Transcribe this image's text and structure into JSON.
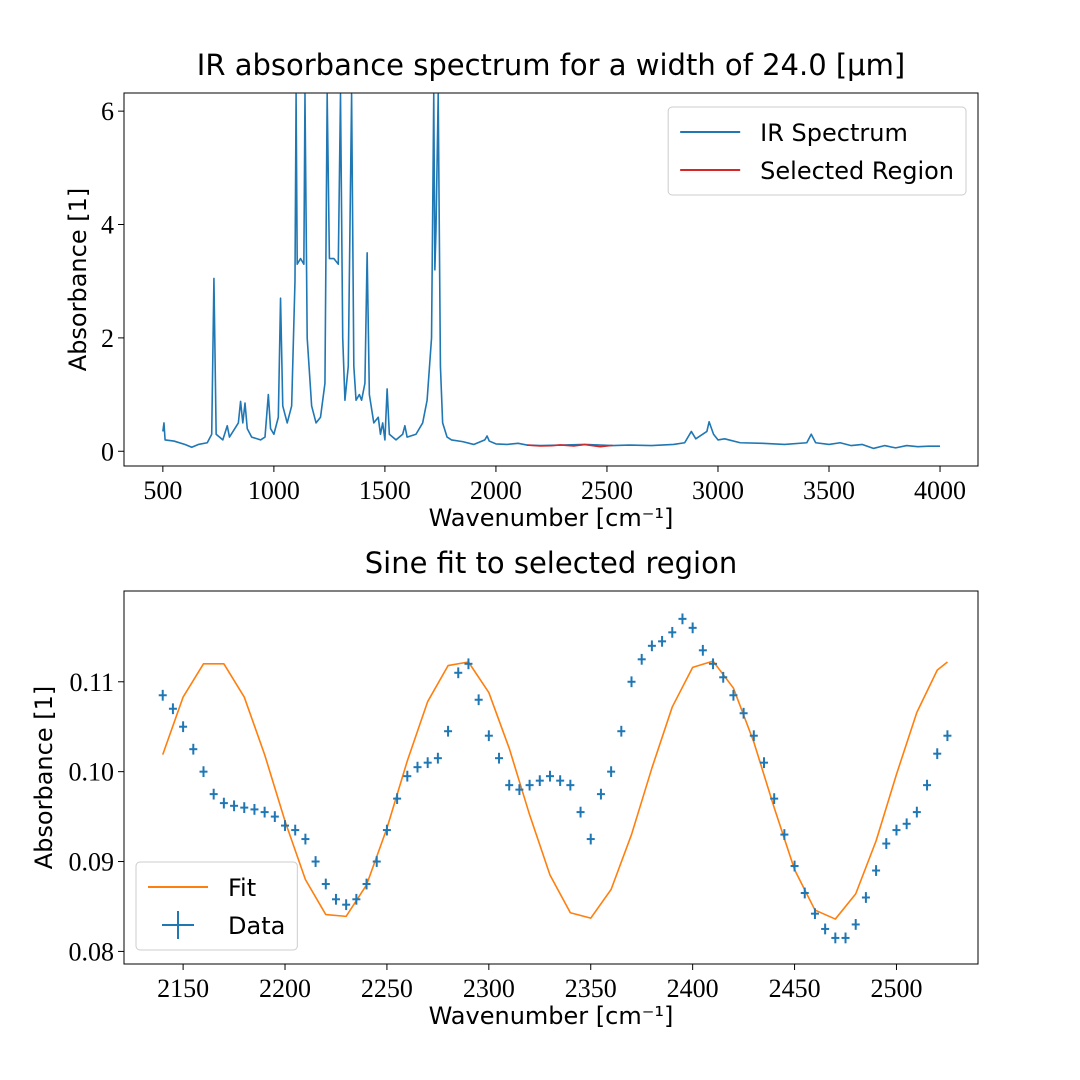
{
  "chart_data": [
    {
      "type": "line",
      "title": "IR absorbance spectrum for a width of 24.0 [μm]",
      "xlabel": "Wavenumber [cm⁻¹]",
      "ylabel": "Absorbance [1]",
      "xlim": [
        325,
        4171
      ],
      "ylim": [
        -0.26,
        6.32
      ],
      "xticks": [
        500,
        1000,
        1500,
        2000,
        2500,
        3000,
        3500,
        4000
      ],
      "yticks": [
        0,
        2,
        4,
        6
      ],
      "legend": "upper right",
      "series": [
        {
          "name": "IR Spectrum",
          "color": "#1f77b4",
          "x": [
            500,
            505,
            510,
            550,
            600,
            630,
            660,
            700,
            720,
            730,
            740,
            770,
            790,
            800,
            840,
            850,
            860,
            870,
            880,
            900,
            940,
            960,
            975,
            985,
            1000,
            1020,
            1030,
            1040,
            1060,
            1080,
            1095,
            1100,
            1105,
            1120,
            1135,
            1140,
            1150,
            1170,
            1190,
            1210,
            1230,
            1240,
            1250,
            1270,
            1290,
            1300,
            1310,
            1320,
            1335,
            1350,
            1360,
            1370,
            1385,
            1395,
            1410,
            1420,
            1430,
            1450,
            1470,
            1480,
            1490,
            1500,
            1510,
            1520,
            1550,
            1580,
            1590,
            1600,
            1640,
            1670,
            1690,
            1710,
            1720,
            1725,
            1730,
            1740,
            1750,
            1760,
            1780,
            1800,
            1850,
            1900,
            1950,
            1960,
            1970,
            2000,
            2050,
            2100,
            2140,
            2200,
            2300,
            2400,
            2525,
            2600,
            2700,
            2800,
            2850,
            2880,
            2900,
            2950,
            2960,
            2980,
            3000,
            3030,
            3100,
            3200,
            3300,
            3400,
            3420,
            3440,
            3500,
            3550,
            3600,
            3650,
            3700,
            3750,
            3800,
            3850,
            3900,
            3950,
            4000
          ],
          "values": [
            0.35,
            0.5,
            0.2,
            0.18,
            0.12,
            0.07,
            0.12,
            0.15,
            0.3,
            3.05,
            0.3,
            0.2,
            0.45,
            0.25,
            0.5,
            0.88,
            0.5,
            0.85,
            0.4,
            0.25,
            0.2,
            0.25,
            1.0,
            0.4,
            0.3,
            0.6,
            2.7,
            0.8,
            0.5,
            0.8,
            3.0,
            6.3,
            3.3,
            3.4,
            3.3,
            6.3,
            2.0,
            0.8,
            0.5,
            0.6,
            1.2,
            6.3,
            3.4,
            3.4,
            3.3,
            6.3,
            2.0,
            0.9,
            1.5,
            6.3,
            1.5,
            0.9,
            1.0,
            0.9,
            1.2,
            3.5,
            1.0,
            0.5,
            0.6,
            0.3,
            0.5,
            0.2,
            1.1,
            0.3,
            0.2,
            0.3,
            0.45,
            0.25,
            0.3,
            0.5,
            0.9,
            2.0,
            6.3,
            3.2,
            3.9,
            6.3,
            1.5,
            0.5,
            0.25,
            0.2,
            0.17,
            0.12,
            0.2,
            0.27,
            0.18,
            0.13,
            0.12,
            0.14,
            0.11,
            0.1,
            0.11,
            0.12,
            0.1,
            0.11,
            0.1,
            0.12,
            0.15,
            0.35,
            0.22,
            0.35,
            0.52,
            0.3,
            0.2,
            0.22,
            0.15,
            0.14,
            0.12,
            0.15,
            0.3,
            0.15,
            0.12,
            0.15,
            0.1,
            0.12,
            0.05,
            0.1,
            0.06,
            0.1,
            0.08,
            0.09,
            0.09
          ]
        },
        {
          "name": "Selected Region",
          "color": "#d62728",
          "x": [
            2140,
            2200,
            2250,
            2290,
            2350,
            2400,
            2470,
            2525
          ],
          "values": [
            0.109,
            0.093,
            0.097,
            0.112,
            0.093,
            0.117,
            0.081,
            0.104
          ]
        }
      ]
    },
    {
      "type": "line",
      "title": "Sine fit to selected region",
      "xlabel": "Wavenumber [cm⁻¹]",
      "ylabel": "Absorbance [1]",
      "xlim": [
        2121,
        2540
      ],
      "ylim": [
        0.0786,
        0.1201
      ],
      "xticks": [
        2150,
        2200,
        2250,
        2300,
        2350,
        2400,
        2450,
        2500
      ],
      "yticks": [
        0.08,
        0.09,
        {
          "value": 0.1,
          "label": "0.10"
        },
        0.11
      ],
      "legend": "lower left",
      "series": [
        {
          "name": "Fit",
          "color": "#ff7f0e",
          "x": [
            2140,
            2150,
            2160,
            2170,
            2180,
            2190,
            2200,
            2210,
            2220,
            2230,
            2240,
            2250,
            2260,
            2270,
            2280,
            2290,
            2300,
            2310,
            2320,
            2330,
            2340,
            2350,
            2360,
            2370,
            2380,
            2390,
            2400,
            2410,
            2420,
            2430,
            2440,
            2450,
            2460,
            2470,
            2480,
            2490,
            2500,
            2510,
            2520,
            2525
          ],
          "values": [
            0.1019,
            0.1083,
            0.112,
            0.112,
            0.1083,
            0.1019,
            0.0945,
            0.088,
            0.0841,
            0.0839,
            0.0874,
            0.0937,
            0.1012,
            0.1078,
            0.1118,
            0.1122,
            0.1088,
            0.1026,
            0.0952,
            0.0885,
            0.0843,
            0.0837,
            0.0869,
            0.093,
            0.1004,
            0.1072,
            0.1116,
            0.1123,
            0.1093,
            0.1033,
            0.096,
            0.0891,
            0.0846,
            0.0836,
            0.0864,
            0.0923,
            0.0997,
            0.1066,
            0.1113,
            0.1122
          ]
        },
        {
          "name": "Data",
          "color": "#1f77b4",
          "yerr": 0.0006,
          "x": [
            2140,
            2145,
            2150,
            2155,
            2160,
            2165,
            2170,
            2175,
            2180,
            2185,
            2190,
            2195,
            2200,
            2205,
            2210,
            2215,
            2220,
            2225,
            2230,
            2235,
            2240,
            2245,
            2250,
            2255,
            2260,
            2265,
            2270,
            2275,
            2280,
            2285,
            2290,
            2295,
            2300,
            2305,
            2310,
            2315,
            2320,
            2325,
            2330,
            2335,
            2340,
            2345,
            2350,
            2355,
            2360,
            2365,
            2370,
            2375,
            2380,
            2385,
            2390,
            2395,
            2400,
            2405,
            2410,
            2415,
            2420,
            2425,
            2430,
            2435,
            2440,
            2445,
            2450,
            2455,
            2460,
            2465,
            2470,
            2475,
            2480,
            2485,
            2490,
            2495,
            2500,
            2505,
            2510,
            2515,
            2520,
            2525
          ],
          "values": [
            0.1085,
            0.107,
            0.105,
            0.1025,
            0.1,
            0.0975,
            0.0965,
            0.0962,
            0.096,
            0.0958,
            0.0955,
            0.095,
            0.094,
            0.0935,
            0.0925,
            0.09,
            0.0875,
            0.0858,
            0.0852,
            0.0858,
            0.0875,
            0.09,
            0.0935,
            0.097,
            0.0995,
            0.1005,
            0.101,
            0.1015,
            0.1045,
            0.111,
            0.112,
            0.108,
            0.104,
            0.1015,
            0.0985,
            0.098,
            0.0985,
            0.099,
            0.0995,
            0.099,
            0.0985,
            0.0955,
            0.0925,
            0.0975,
            0.1,
            0.1045,
            0.11,
            0.1125,
            0.114,
            0.1145,
            0.1155,
            0.117,
            0.116,
            0.1135,
            0.112,
            0.1105,
            0.1085,
            0.1065,
            0.104,
            0.101,
            0.097,
            0.093,
            0.0895,
            0.0865,
            0.0842,
            0.0825,
            0.0815,
            0.0815,
            0.083,
            0.086,
            0.089,
            0.092,
            0.0935,
            0.0942,
            0.0955,
            0.0985,
            0.102,
            0.104
          ]
        }
      ]
    }
  ]
}
